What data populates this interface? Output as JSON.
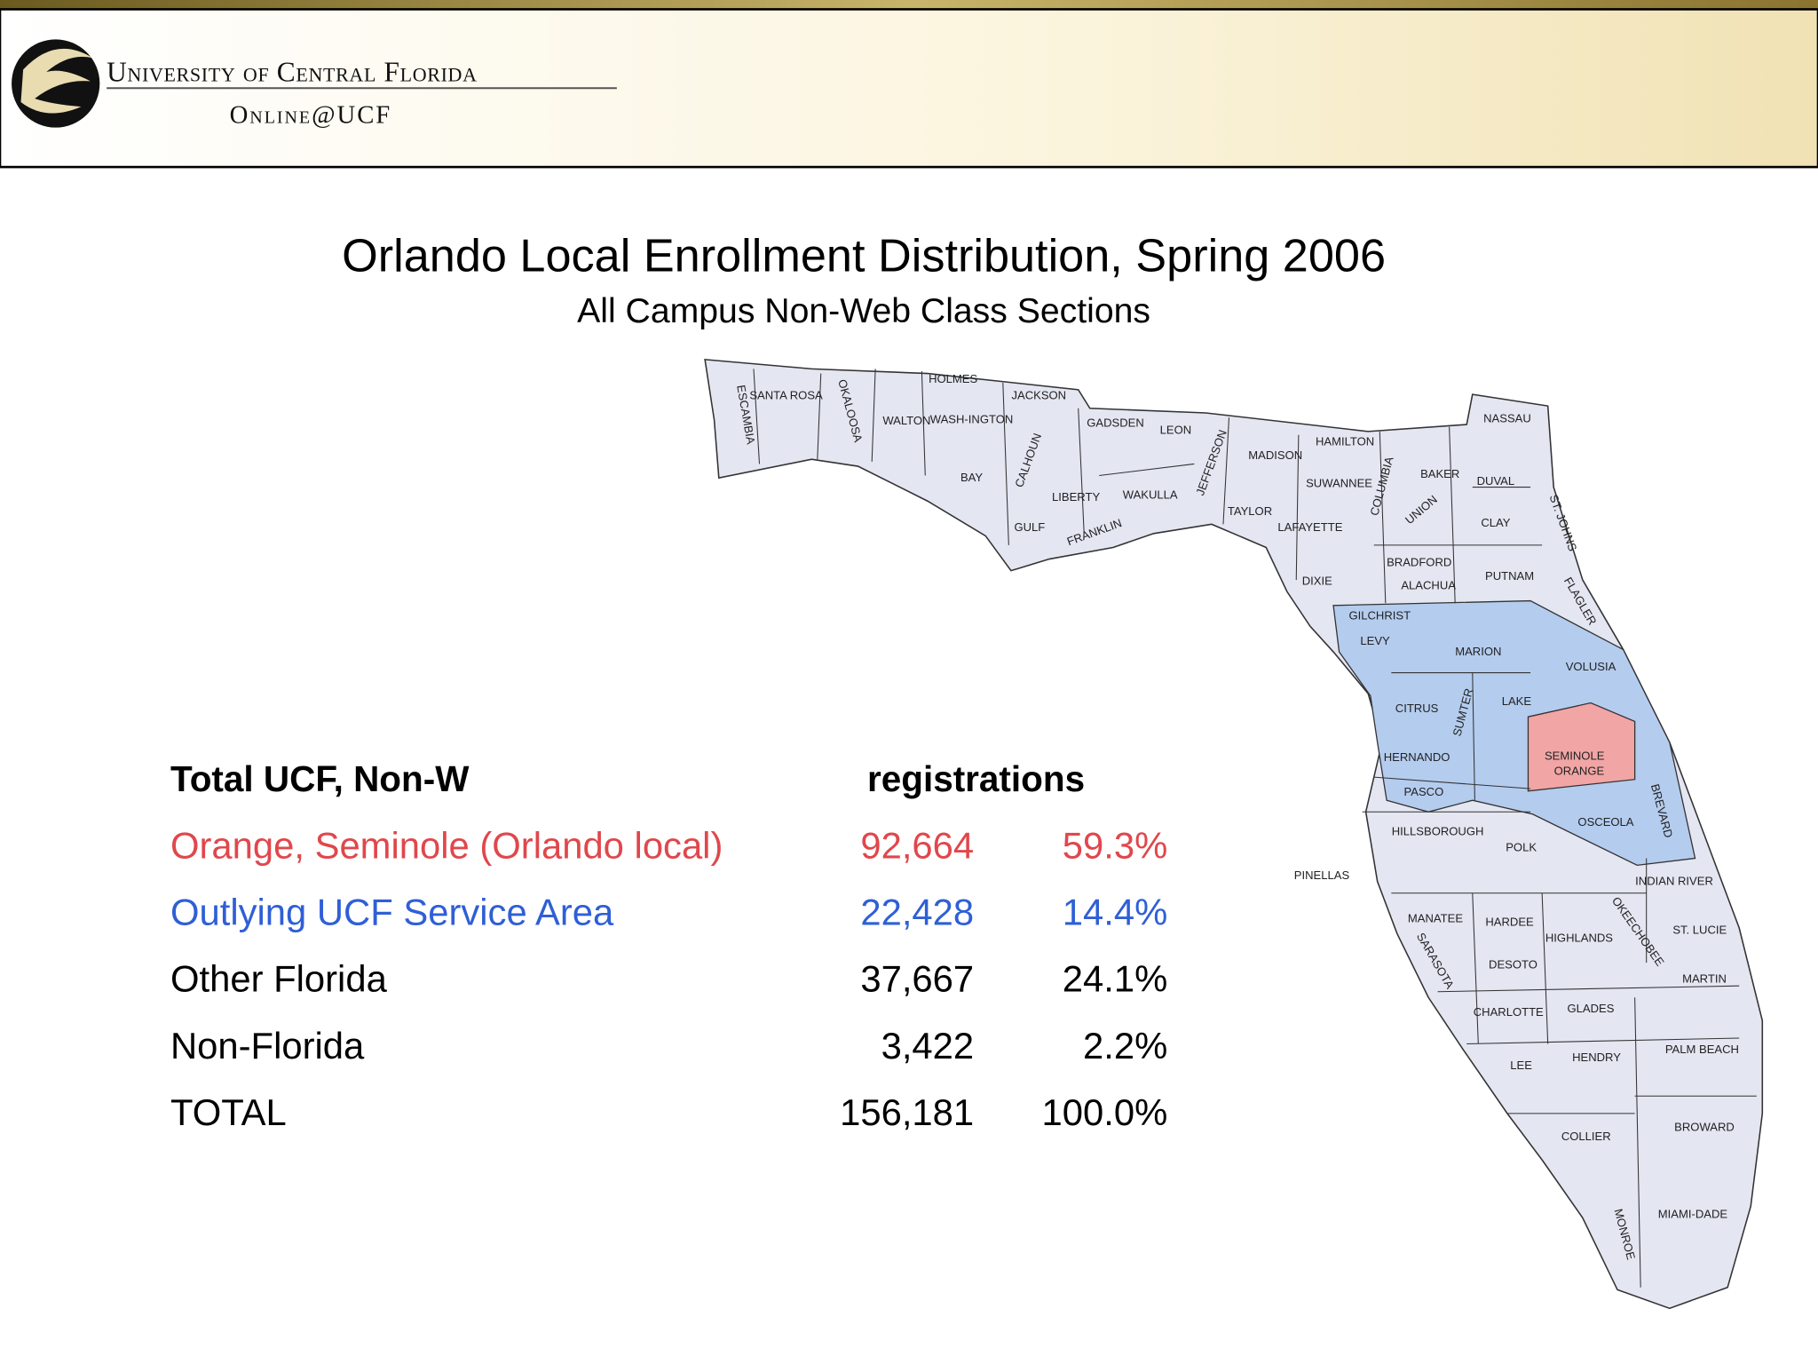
{
  "header": {
    "university": "University of Central Florida",
    "unit": "Online@UCF"
  },
  "title": "Orlando Local Enrollment Distribution, Spring 2006",
  "subtitle": "All Campus Non-Web Class Sections",
  "table": {
    "header": [
      "Total UCF, Non-W",
      "registrations"
    ],
    "rows": [
      {
        "label": "Orange, Seminole (Orlando local)",
        "count": "92,664",
        "percent": "59.3%",
        "color": "#e0474c"
      },
      {
        "label": "Outlying UCF Service Area",
        "count": "22,428",
        "percent": "14.4%",
        "color": "#2f5fd6"
      },
      {
        "label": "Other Florida",
        "count": "37,667",
        "percent": "24.1%",
        "color": "#000000"
      },
      {
        "label": "Non-Florida",
        "count": "3,422",
        "percent": "2.2%",
        "color": "#000000"
      },
      {
        "label": "TOTAL",
        "count": "156,181",
        "percent": "100.0%",
        "color": "#000000"
      }
    ]
  },
  "map": {
    "colors": {
      "local": "#f2a5a5",
      "service": "#b4ccee",
      "other": "#e4e6f2"
    },
    "counties": [
      "ESCAMBIA",
      "SANTA ROSA",
      "OKALOOSA",
      "WALTON",
      "HOLMES",
      "WASH-INGTON",
      "JACKSON",
      "BAY",
      "CALHOUN",
      "GADSDEN",
      "LEON",
      "LIBERTY",
      "WAKULLA",
      "GULF",
      "FRANKLIN",
      "JEFFERSON",
      "MADISON",
      "HAMILTON",
      "SUWANNEE",
      "TAYLOR",
      "LAFAYETTE",
      "DIXIE",
      "COLUMBIA",
      "BAKER",
      "UNION",
      "NASSAU",
      "DUVAL",
      "CLAY",
      "ST. JOHNS",
      "BRADFORD",
      "ALACHUA",
      "PUTNAM",
      "FLAGLER",
      "GILCHRIST",
      "LEVY",
      "MARION",
      "VOLUSIA",
      "CITRUS",
      "SUMTER",
      "LAKE",
      "HERNANDO",
      "SEMINOLE",
      "ORANGE",
      "PASCO",
      "HILLSBOROUGH",
      "PINELLAS",
      "POLK",
      "OSCEOLA",
      "BREVARD",
      "INDIAN RIVER",
      "MANATEE",
      "HARDEE",
      "HIGHLANDS",
      "OKEECHOBEE",
      "ST. LUCIE",
      "SARASOTA",
      "DESOTO",
      "MARTIN",
      "CHARLOTTE",
      "GLADES",
      "PALM BEACH",
      "LEE",
      "HENDRY",
      "BROWARD",
      "COLLIER",
      "MIAMI-DADE",
      "MONROE"
    ]
  }
}
